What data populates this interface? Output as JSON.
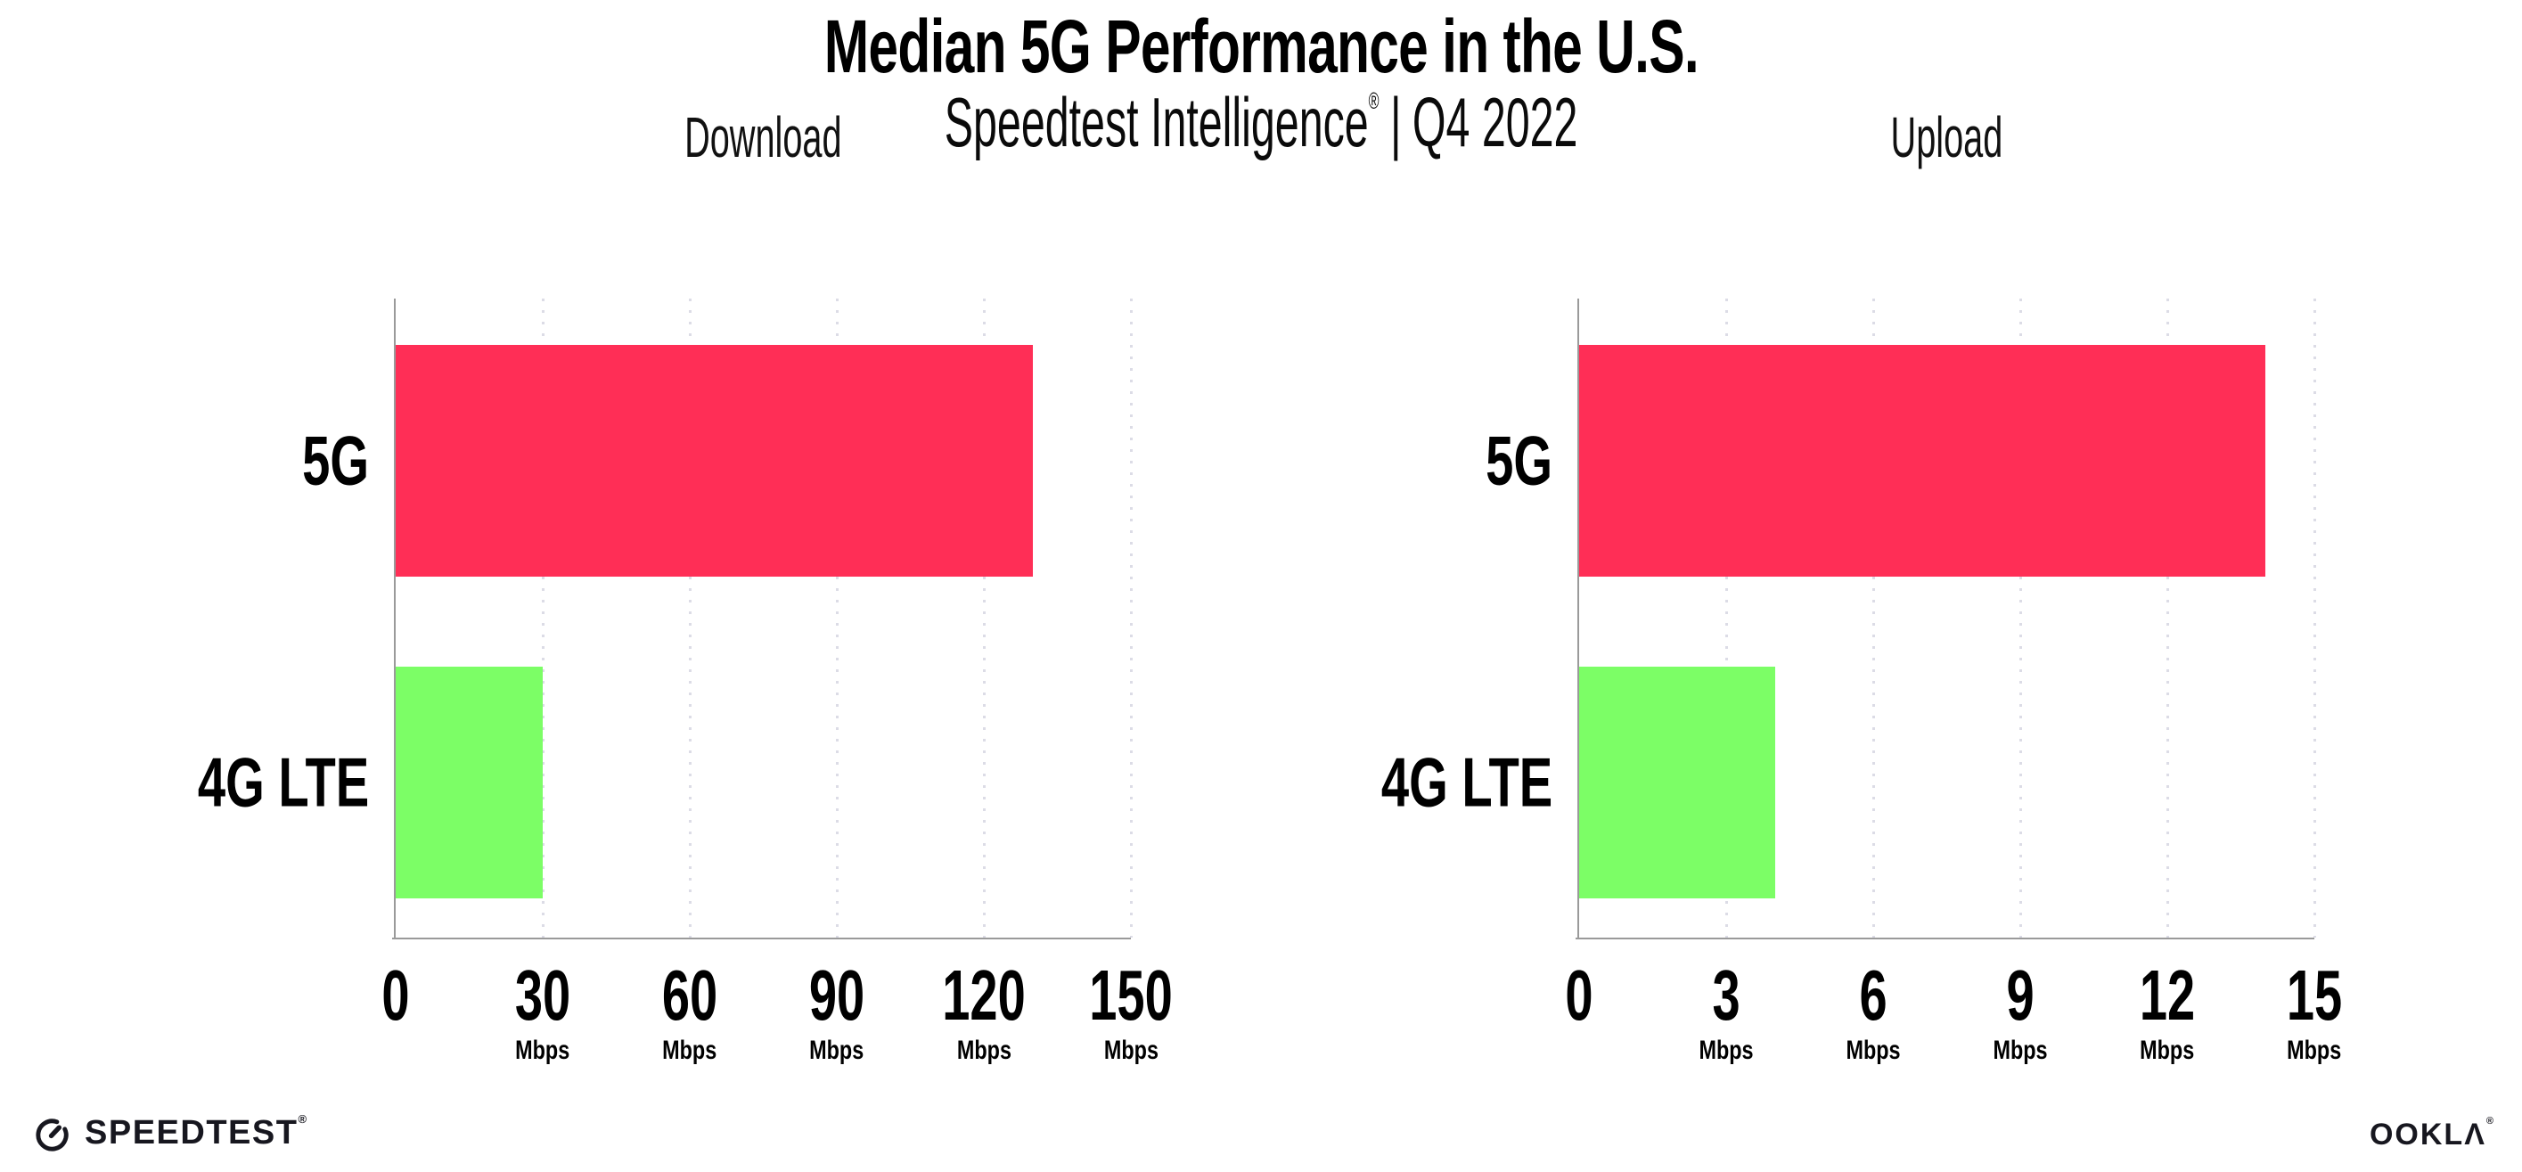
{
  "header": {
    "title": "Median 5G Performance in the U.S.",
    "subtitle": {
      "brand": "Speedtest Intelligence",
      "registered_mark": "®",
      "separator": "|",
      "period": "Q4 2022"
    }
  },
  "chart_data": [
    {
      "type": "bar",
      "orientation": "horizontal",
      "title": "Download",
      "categories": [
        "5G",
        "4G LTE"
      ],
      "values": [
        130,
        30
      ],
      "value_unit": "Mbps",
      "bar_colors": [
        "#FF2E56",
        "#7CFE66"
      ],
      "xlim": [
        0,
        150
      ],
      "xticks": [
        0,
        30,
        60,
        90,
        120,
        150
      ],
      "tick_unit": "Mbps",
      "grid": "vertical-dotted",
      "legend": "none"
    },
    {
      "type": "bar",
      "orientation": "horizontal",
      "title": "Upload",
      "categories": [
        "5G",
        "4G LTE"
      ],
      "values": [
        14,
        4
      ],
      "value_unit": "Mbps",
      "bar_colors": [
        "#FF2E56",
        "#7CFE66"
      ],
      "xlim": [
        0,
        15
      ],
      "xticks": [
        0,
        3,
        6,
        9,
        12,
        15
      ],
      "tick_unit": "Mbps",
      "grid": "vertical-dotted",
      "legend": "none"
    }
  ],
  "colors": {
    "bar_5g": "#FF2E56",
    "bar_4g_lte": "#7CFE66",
    "axis": "#9A9A9A",
    "gridline_dots": "#DCDCE6",
    "text": "#000000",
    "logo": "#17171F"
  },
  "footer": {
    "speedtest_logo_text": "SPEEDTEST",
    "speedtest_trademark": "®",
    "ookla_logo_text": "OOKLA",
    "ookla_trademark": "®"
  }
}
